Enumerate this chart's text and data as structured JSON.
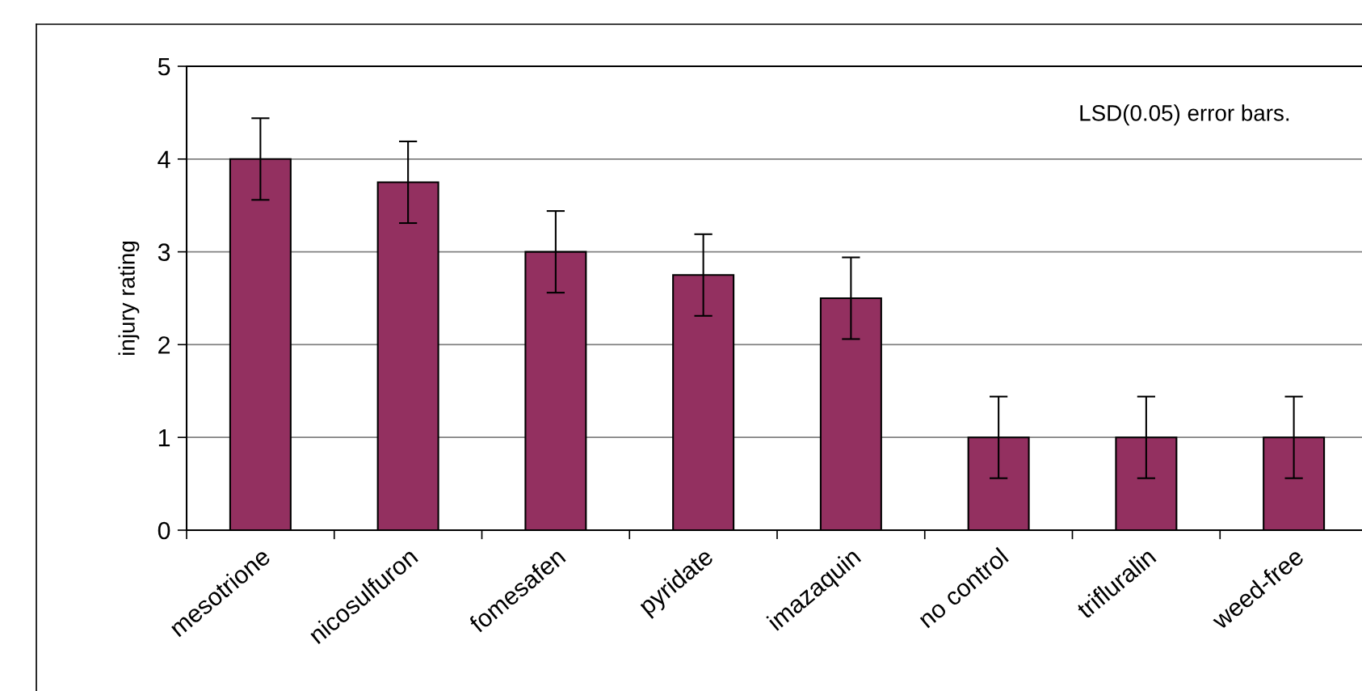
{
  "chart_data": {
    "type": "bar",
    "ylabel": "injury rating",
    "categories": [
      "mesotrione",
      "nicosulfuron",
      "fomesafen",
      "pyridate",
      "imazaquin",
      "no control",
      "trifluralin",
      "weed-free"
    ],
    "values": [
      4.0,
      3.75,
      3.0,
      2.75,
      2.5,
      1.0,
      1.0,
      1.0
    ],
    "errors": [
      0.44,
      0.44,
      0.44,
      0.44,
      0.44,
      0.44,
      0.44,
      0.44
    ],
    "color": "#933060",
    "ylim": [
      0,
      5
    ],
    "yticks": [
      0,
      1,
      2,
      3,
      4,
      5
    ],
    "grid": "y",
    "annotations": [
      "LSD(0.05) error bars."
    ]
  }
}
